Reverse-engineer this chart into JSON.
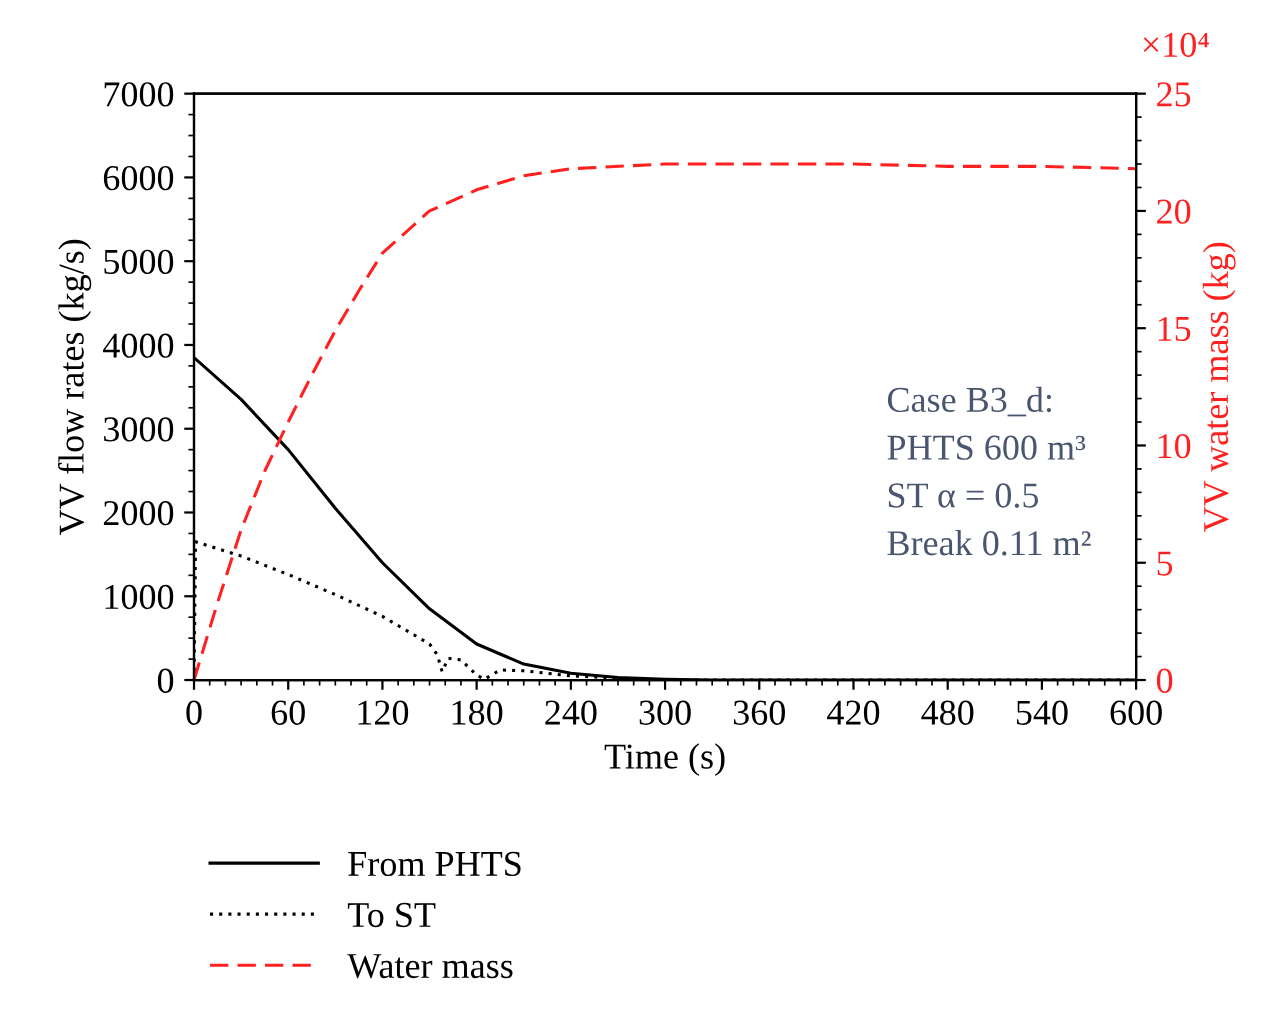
{
  "chart_data": {
    "type": "line",
    "xlabel": "Time (s)",
    "ylabel": "VV flow rates (kg/s)",
    "y2label": "VV water mass (kg)",
    "xlim": [
      0,
      600
    ],
    "xticks": [
      0,
      60,
      120,
      180,
      240,
      300,
      360,
      420,
      480,
      540,
      600
    ],
    "ylim": [
      0,
      7000
    ],
    "yticks": [
      0,
      1000,
      2000,
      3000,
      4000,
      5000,
      6000,
      7000
    ],
    "y2lim": [
      0,
      25
    ],
    "y2ticks": [
      0,
      5,
      10,
      15,
      20,
      25
    ],
    "legend": "bottom",
    "grid": false,
    "marker": "none",
    "annotations": [
      "×10⁴",
      "Case B3_d:\nPHTS 600 m³\nST α = 0.5\nBreak 0.11 m²"
    ],
    "series": [
      {
        "name": "From PHTS",
        "color": "#000000",
        "line_style": "solid",
        "x": [
          0,
          30,
          60,
          90,
          120,
          150,
          180,
          210,
          240,
          270,
          300,
          330,
          600
        ],
        "values": [
          3850,
          3350,
          2750,
          2050,
          1400,
          850,
          430,
          190,
          80,
          30,
          10,
          0,
          0
        ]
      },
      {
        "name": "To ST",
        "color": "#000000",
        "line_style": "dotted",
        "x": [
          0,
          1,
          30,
          60,
          90,
          120,
          150,
          155,
          158,
          162,
          170,
          180,
          185,
          195,
          210,
          240,
          270,
          300,
          600
        ],
        "values": [
          0,
          1650,
          1480,
          1260,
          1020,
          760,
          430,
          300,
          100,
          260,
          240,
          60,
          10,
          120,
          110,
          50,
          20,
          0,
          0
        ]
      },
      {
        "name": "Water mass",
        "color": "#ff2020",
        "line_style": "dashed",
        "axis": "y2",
        "x": [
          0,
          15,
          30,
          45,
          60,
          75,
          90,
          105,
          120,
          150,
          180,
          210,
          240,
          300,
          360,
          420,
          480,
          540,
          600
        ],
        "values": [
          0,
          3.3,
          6.4,
          8.9,
          11.0,
          13.0,
          14.9,
          16.6,
          18.2,
          20.0,
          20.9,
          21.5,
          21.8,
          22.0,
          22.0,
          22.0,
          21.9,
          21.9,
          21.8
        ]
      }
    ]
  }
}
